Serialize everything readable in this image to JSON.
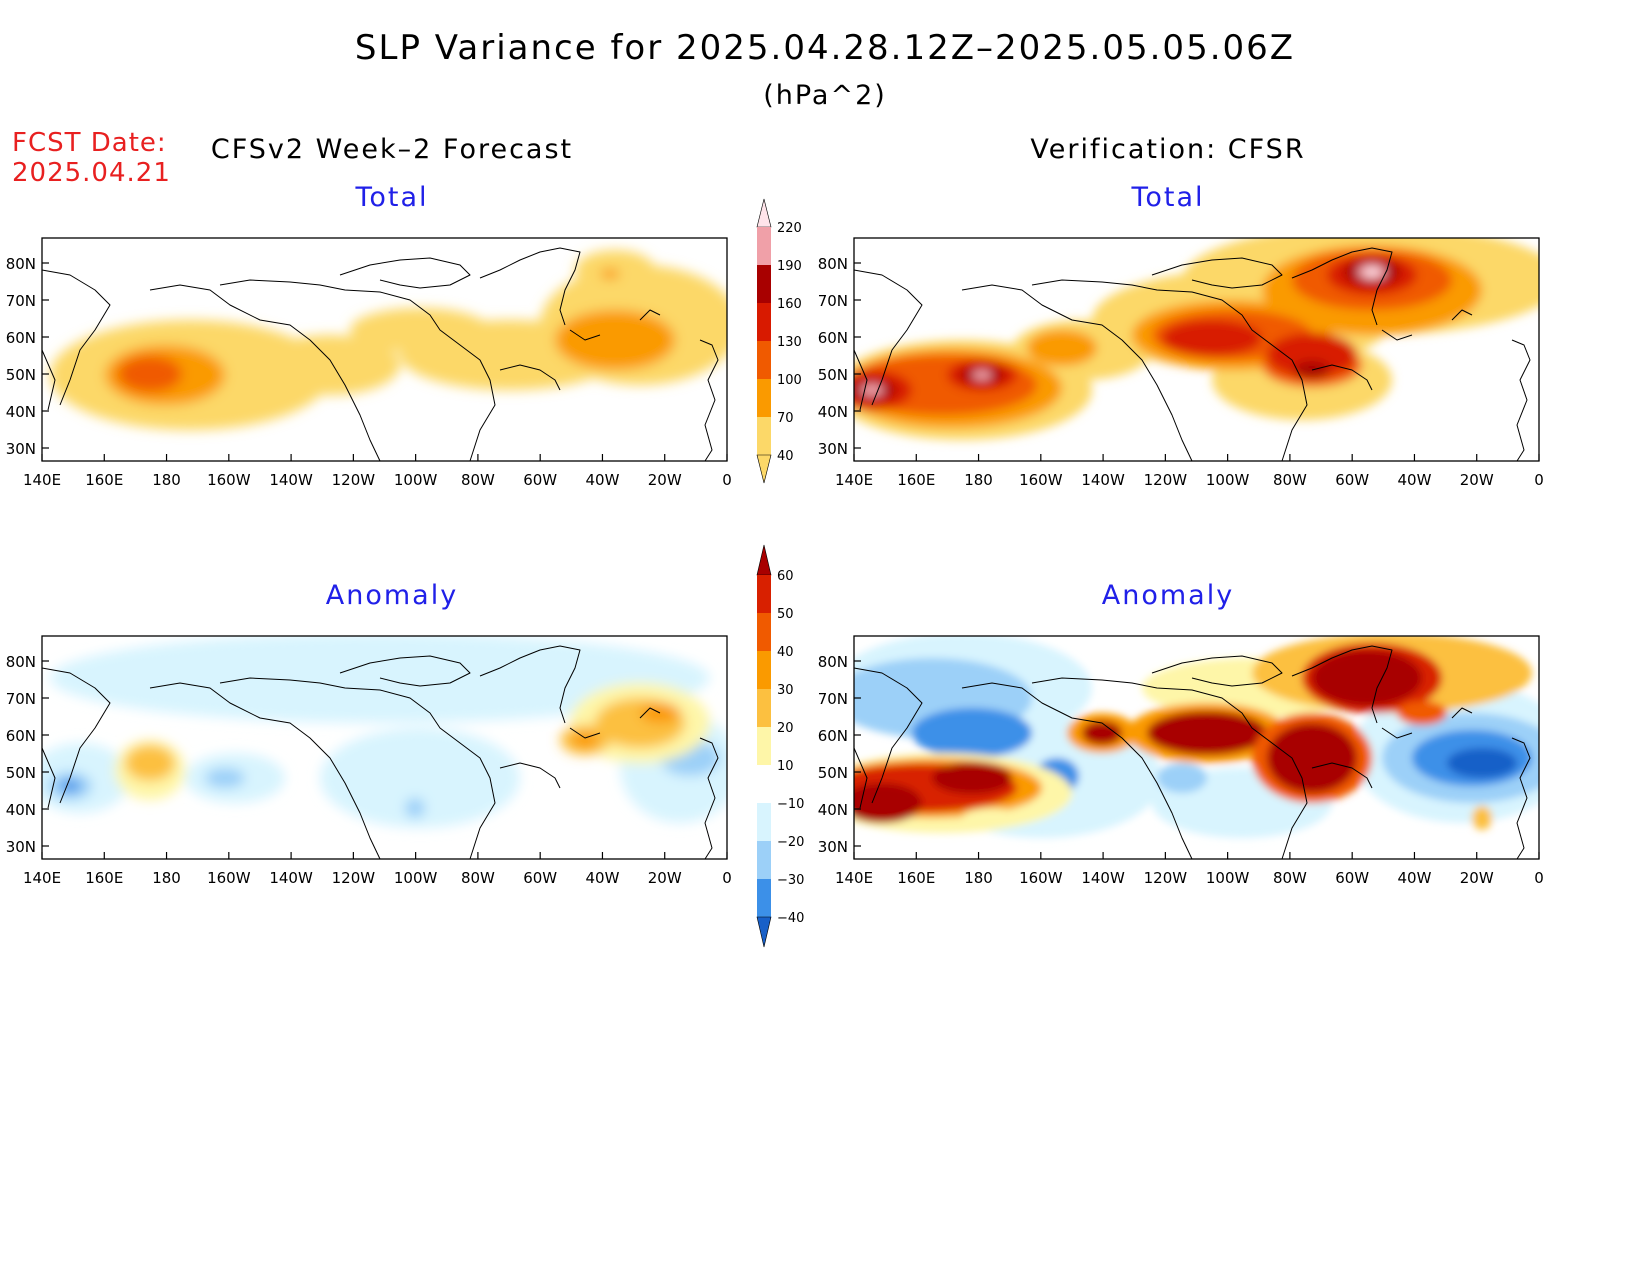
{
  "title": "SLP Variance for 2025.04.28.12Z–2025.05.05.06Z",
  "units": "(hPa^2)",
  "fcst_label": "FCST Date:",
  "fcst_date": "2025.04.21",
  "left_column": "CFSv2 Week–2 Forecast",
  "right_column": "Verification: CFSR",
  "row_labels": {
    "top": "Total",
    "bottom": "Anomaly"
  },
  "lat_labels": [
    "80N",
    "70N",
    "60N",
    "50N",
    "40N",
    "30N"
  ],
  "lon_labels": [
    "140E",
    "160E",
    "180",
    "160W",
    "140W",
    "120W",
    "100W",
    "80W",
    "60W",
    "40W",
    "20W",
    "0"
  ],
  "colorbars": {
    "total": {
      "levels": [
        "220",
        "190",
        "160",
        "130",
        "100",
        "70",
        "40"
      ],
      "colors": [
        "#ffe4ea",
        "#f0a0a8",
        "#a80000",
        "#d81a00",
        "#f05a00",
        "#fa9a00",
        "#fcd868"
      ]
    },
    "anomaly": {
      "levels": [
        "60",
        "50",
        "40",
        "30",
        "20",
        "10",
        "−10",
        "−20",
        "−30",
        "−40"
      ],
      "colors": [
        "#a80000",
        "#d82000",
        "#f05a00",
        "#fa9a00",
        "#fcc040",
        "#fef6a8",
        "#ffffff",
        "#d8f4fe",
        "#9cd0f8",
        "#3c90e8",
        "#1860c8"
      ]
    }
  },
  "palette": {
    "total": {
      "l1": "#fcd868",
      "l2": "#fa9a00",
      "l3": "#f05a00",
      "l4": "#d81a00",
      "l5": "#a80000",
      "l6": "#f0a0a8",
      "l7": "#ffe4ea"
    },
    "anomaly": {
      "p1": "#fef6a8",
      "p2": "#fcc040",
      "p3": "#fa9a00",
      "p4": "#f05a00",
      "p5": "#d82000",
      "p6": "#a80000",
      "n1": "#d8f4fe",
      "n2": "#9cd0f8",
      "n3": "#3c90e8",
      "n4": "#1860c8"
    },
    "heading_blue": "#2020e8",
    "fcst_red": "#e82020"
  }
}
